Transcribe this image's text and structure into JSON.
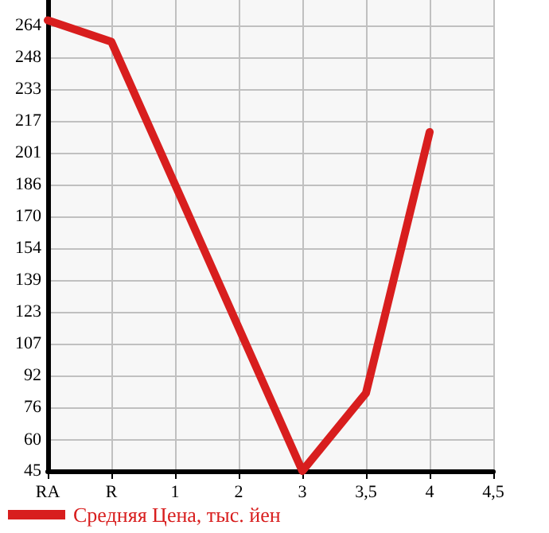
{
  "chart_data": {
    "type": "line",
    "categories": [
      "RA",
      "R",
      "1",
      "2",
      "3",
      "3,5",
      "4",
      "4,5"
    ],
    "series": [
      {
        "name": "Средняя Цена, тыс. йен",
        "color": "#d81e1e",
        "values": [
          266.5,
          256,
          185.8,
          115.4,
          45,
          83.3,
          211.6,
          null
        ]
      }
    ],
    "ylim": [
      45,
      276.5
    ],
    "yticks": [
      45,
      {
        "value": 60.4,
        "label": "60"
      },
      {
        "value": 76.29,
        "label": "76"
      },
      {
        "value": 91.93,
        "label": "92"
      },
      {
        "value": 107.4,
        "label": "107"
      },
      {
        "value": 123.21,
        "label": "123"
      },
      {
        "value": 138.86,
        "label": "139"
      },
      {
        "value": 154.5,
        "label": "154"
      },
      {
        "value": 170.14,
        "label": "170"
      },
      {
        "value": 185.79,
        "label": "186"
      },
      {
        "value": 201.43,
        "label": "201"
      },
      {
        "value": 217.07,
        "label": "217"
      },
      {
        "value": 232.71,
        "label": "233"
      },
      {
        "value": 248.36,
        "label": "248"
      },
      {
        "value": 264,
        "label": "264"
      }
    ],
    "grid": true,
    "legend": "bottom",
    "marker": "none",
    "line_style": "solid"
  }
}
